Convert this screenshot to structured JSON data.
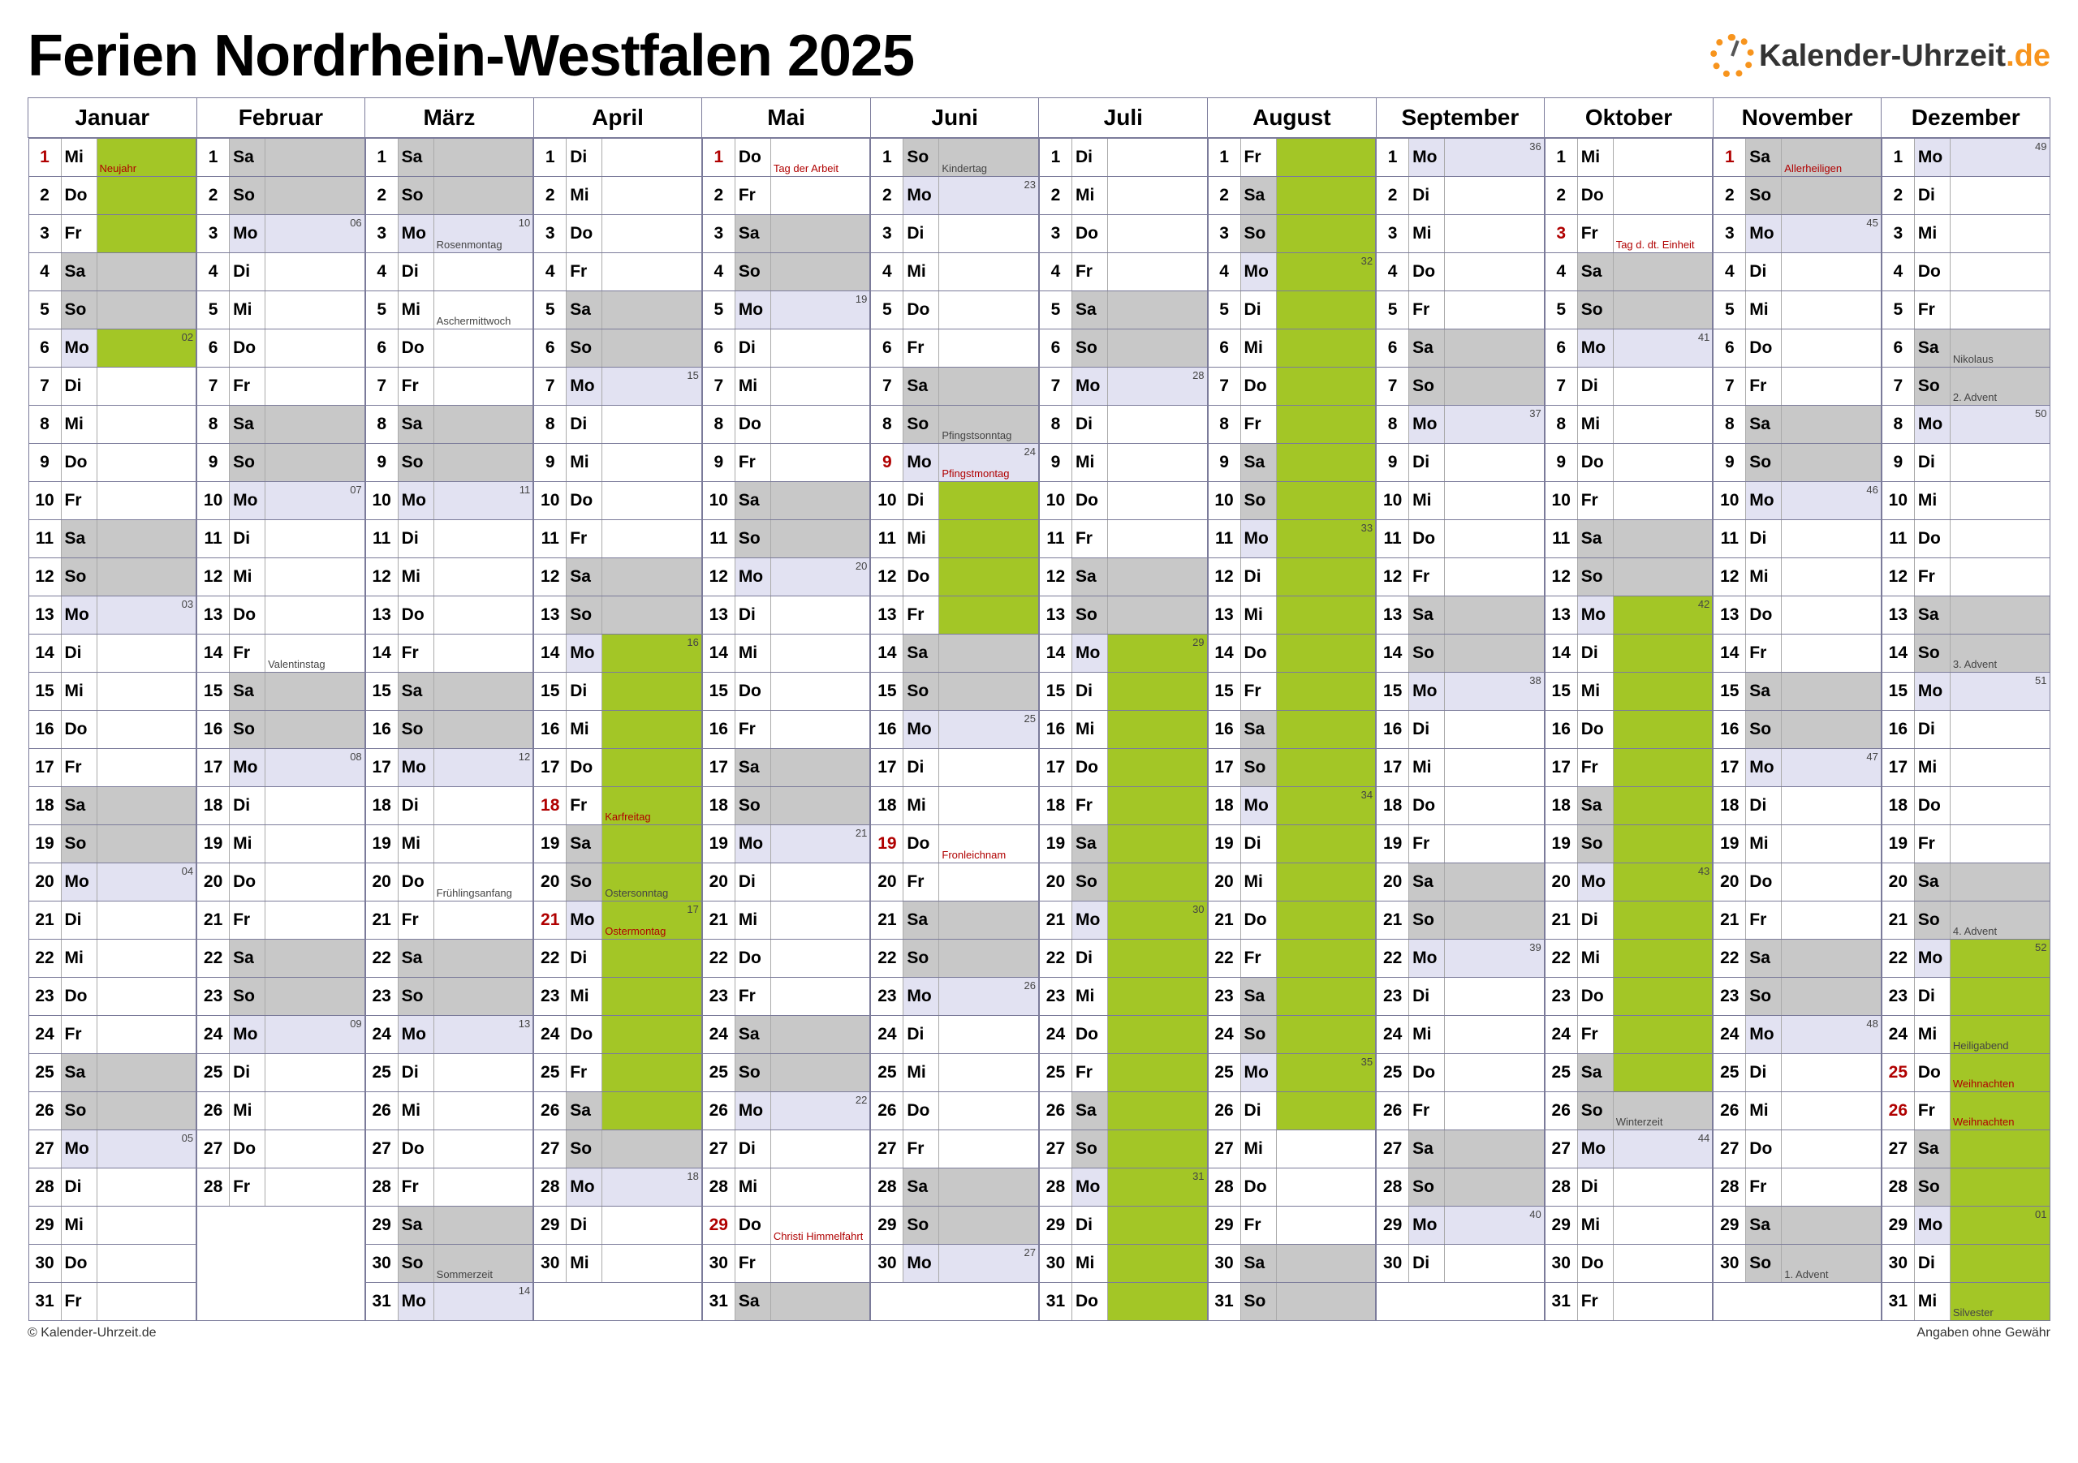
{
  "title": "Ferien Nordrhein-Westfalen 2025",
  "brand_prefix": "Kalender-Uhrzeit",
  "brand_suffix": ".de",
  "footer_left": "© Kalender-Uhrzeit.de",
  "footer_right": "Angaben ohne Gewähr",
  "colors": {
    "border": "#7b7b9a",
    "weekend": "#c8c8c8",
    "lavender": "#e2e2f2",
    "vacation": "#a3c626",
    "hol_text": "#b00000",
    "note_text": "#444444",
    "brand_accent": "#f7941d",
    "background": "#ffffff"
  },
  "wdNames": [
    "Mo",
    "Di",
    "Mi",
    "Do",
    "Fr",
    "Sa",
    "So"
  ],
  "weekendIdx": [
    5,
    6
  ],
  "months": [
    {
      "name": "Januar",
      "len": 31,
      "start": 2,
      "holidays": {
        "1": "Neujahr"
      },
      "weeks": {
        "6": "02",
        "13": "03",
        "20": "04",
        "27": "05"
      },
      "vac": [
        1,
        2,
        3,
        6
      ]
    },
    {
      "name": "Februar",
      "len": 28,
      "start": 5,
      "notes": {
        "14": "Valentinstag"
      },
      "weeks": {
        "3": "06",
        "10": "07",
        "17": "08",
        "24": "09"
      },
      "vac": []
    },
    {
      "name": "März",
      "len": 31,
      "start": 5,
      "notes": {
        "3": "Rosenmontag",
        "5": "Aschermittwoch",
        "20": "Frühlingsanfang",
        "30": "Sommerzeit"
      },
      "weeks": {
        "3": "10",
        "10": "11",
        "17": "12",
        "24": "13",
        "31": "14"
      },
      "vac": []
    },
    {
      "name": "April",
      "len": 30,
      "start": 1,
      "holidays": {
        "18": "Karfreitag",
        "21": "Ostermontag"
      },
      "notes": {
        "20": "Ostersonntag"
      },
      "weeks": {
        "7": "15",
        "14": "16",
        "21": "17",
        "28": "18"
      },
      "vac": [
        14,
        15,
        16,
        17,
        18,
        19,
        20,
        21,
        22,
        23,
        24,
        25,
        26
      ]
    },
    {
      "name": "Mai",
      "len": 31,
      "start": 3,
      "holidays": {
        "1": "Tag der Arbeit",
        "29": "Christi Himmelfahrt"
      },
      "weeks": {
        "5": "19",
        "12": "20",
        "19": "21",
        "26": "22"
      },
      "vac": []
    },
    {
      "name": "Juni",
      "len": 30,
      "start": 6,
      "holidays": {
        "9": "Pfingstmontag",
        "19": "Fronleichnam"
      },
      "notes": {
        "1": "Kindertag",
        "8": "Pfingstsonntag"
      },
      "weeks": {
        "2": "23",
        "9": "24",
        "16": "25",
        "23": "26",
        "30": "27"
      },
      "vac": [
        10,
        11,
        12,
        13
      ]
    },
    {
      "name": "Juli",
      "len": 31,
      "start": 1,
      "weeks": {
        "7": "28",
        "14": "29",
        "21": "30",
        "28": "31"
      },
      "vac": [
        14,
        15,
        16,
        17,
        18,
        19,
        20,
        21,
        22,
        23,
        24,
        25,
        26,
        27,
        28,
        29,
        30,
        31
      ]
    },
    {
      "name": "August",
      "len": 31,
      "start": 4,
      "weeks": {
        "4": "32",
        "11": "33",
        "18": "34",
        "25": "35"
      },
      "vac": [
        1,
        2,
        3,
        4,
        5,
        6,
        7,
        8,
        9,
        10,
        11,
        12,
        13,
        14,
        15,
        16,
        17,
        18,
        19,
        20,
        21,
        22,
        23,
        24,
        25,
        26
      ]
    },
    {
      "name": "September",
      "len": 30,
      "start": 0,
      "weeks": {
        "1": "36",
        "8": "37",
        "15": "38",
        "22": "39",
        "29": "40"
      },
      "vac": []
    },
    {
      "name": "Oktober",
      "len": 31,
      "start": 2,
      "holidays": {
        "3": "Tag d. dt. Einheit"
      },
      "notes": {
        "26": "Winterzeit"
      },
      "weeks": {
        "6": "41",
        "13": "42",
        "20": "43",
        "27": "44"
      },
      "vac": [
        13,
        14,
        15,
        16,
        17,
        18,
        19,
        20,
        21,
        22,
        23,
        24,
        25
      ]
    },
    {
      "name": "November",
      "len": 30,
      "start": 5,
      "holidays": {
        "1": "Allerheiligen"
      },
      "notes": {
        "30": "1. Advent"
      },
      "weeks": {
        "3": "45",
        "10": "46",
        "17": "47",
        "24": "48"
      },
      "vac": []
    },
    {
      "name": "Dezember",
      "len": 31,
      "start": 0,
      "holidays": {
        "25": "Weihnachten",
        "26": "Weihnachten"
      },
      "notes": {
        "6": "Nikolaus",
        "7": "2. Advent",
        "14": "3. Advent",
        "21": "4. Advent",
        "24": "Heiligabend",
        "31": "Silvester"
      },
      "weeks": {
        "1": "49",
        "8": "50",
        "15": "51",
        "22": "52",
        "29": "01"
      },
      "vac": [
        22,
        23,
        24,
        25,
        26,
        27,
        28,
        29,
        30,
        31
      ]
    }
  ]
}
